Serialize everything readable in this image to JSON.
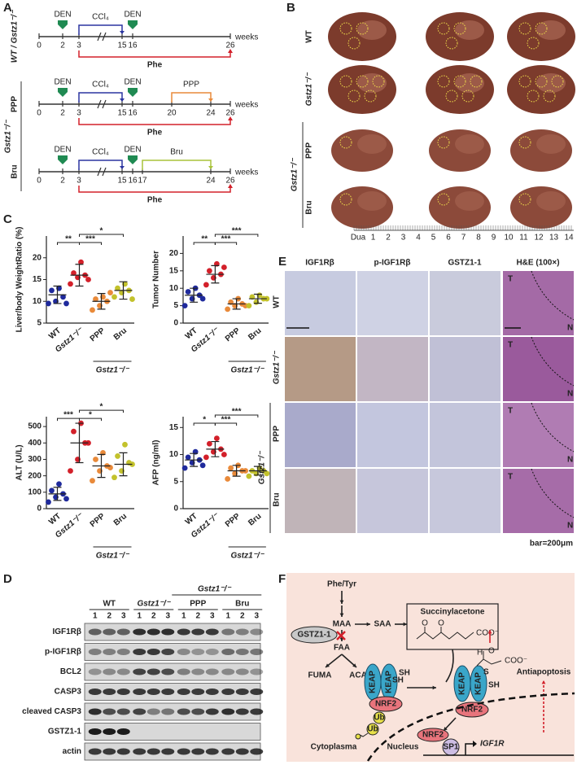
{
  "panel_a": {
    "label": "A",
    "den": "DEN",
    "ccl4": "CCl₄",
    "phe": "Phe",
    "weeks": "weeks",
    "group": "Gstz1⁻/⁻",
    "timelines": [
      {
        "label": "WT / Gstz1⁻/⁻",
        "ticks": [
          0,
          2,
          3,
          15,
          16,
          26
        ],
        "treatment": null
      },
      {
        "label": "PPP",
        "ticks": [
          0,
          2,
          3,
          15,
          16,
          20,
          24,
          26
        ],
        "treatment": {
          "name": "PPP",
          "from": 20,
          "to": 24
        }
      },
      {
        "label": "Bru",
        "ticks": [
          0,
          2,
          3,
          15,
          16,
          17,
          24,
          26
        ],
        "treatment": {
          "name": "Bru",
          "from": 17,
          "to": 24
        }
      }
    ]
  },
  "panel_b": {
    "label": "B",
    "rows": [
      "WT",
      "Gstz1⁻/⁻",
      "PPP",
      "Bru"
    ],
    "group": "Gstz1⁻/⁻",
    "ruler": [
      "Dua",
      "1",
      "2",
      "3",
      "4",
      "5",
      "6",
      "7",
      "8",
      "9",
      "10",
      "11",
      "12",
      "13",
      "14"
    ]
  },
  "panel_c": {
    "label": "C"
  },
  "chart_data": [
    {
      "type": "dotplot",
      "ylabel": "Liver/body WeightRatio (%)",
      "categories": [
        "WT",
        "Gstz1⁻/⁻",
        "PPP",
        "Bru"
      ],
      "colors": [
        "#1f2a9c",
        "#d3202a",
        "#e98a3a",
        "#c3c22c"
      ],
      "values": [
        [
          9.5,
          10,
          11,
          12.5,
          13,
          9.5
        ],
        [
          14,
          15.5,
          16,
          16.5,
          19,
          15
        ],
        [
          8,
          9,
          10,
          10.5,
          11,
          12
        ],
        [
          11,
          12,
          12.5,
          13,
          14,
          10.5
        ]
      ],
      "means": [
        11.5,
        16,
        10,
        12.5
      ],
      "sds": [
        2,
        2.5,
        1.8,
        2
      ],
      "ylim": [
        5,
        25
      ],
      "yticks": [
        5,
        10,
        15,
        20
      ],
      "group": {
        "label": "Gstz1⁻/⁻",
        "categories": [
          2,
          3
        ]
      },
      "comparisons": [
        {
          "from": 0,
          "to": 1,
          "label": "**"
        },
        {
          "from": 1,
          "to": 2,
          "label": "***"
        },
        {
          "from": 1,
          "to": 3,
          "label": "*"
        }
      ]
    },
    {
      "type": "dotplot",
      "ylabel": "Tumor Number",
      "categories": [
        "WT",
        "Gstz1⁻/⁻",
        "PPP",
        "Bru"
      ],
      "colors": [
        "#1f2a9c",
        "#d3202a",
        "#e98a3a",
        "#c3c22c"
      ],
      "values": [
        [
          5,
          7,
          8,
          9,
          10,
          7
        ],
        [
          11,
          13,
          14,
          15,
          17,
          16
        ],
        [
          4,
          5,
          5.5,
          6,
          7,
          5
        ],
        [
          5,
          6,
          7,
          7.5,
          8,
          7
        ]
      ],
      "means": [
        8,
        14,
        5.5,
        7
      ],
      "sds": [
        2,
        2.5,
        1.5,
        1.3
      ],
      "ylim": [
        0,
        25
      ],
      "yticks": [
        0,
        5,
        10,
        15,
        20
      ],
      "group": {
        "label": "Gstz1⁻/⁻",
        "categories": [
          2,
          3
        ]
      },
      "comparisons": [
        {
          "from": 0,
          "to": 1,
          "label": "**"
        },
        {
          "from": 1,
          "to": 2,
          "label": "***"
        },
        {
          "from": 1,
          "to": 3,
          "label": "***"
        }
      ]
    },
    {
      "type": "dotplot",
      "ylabel": "ALT (U/L)",
      "categories": [
        "WT",
        "Gstz1⁻/⁻",
        "PPP",
        "Bru"
      ],
      "colors": [
        "#1f2a9c",
        "#d3202a",
        "#e98a3a",
        "#c3c22c"
      ],
      "values": [
        [
          40,
          70,
          90,
          110,
          150,
          60
        ],
        [
          230,
          300,
          400,
          470,
          520,
          400
        ],
        [
          170,
          230,
          260,
          300,
          340,
          250
        ],
        [
          190,
          230,
          280,
          320,
          390,
          270
        ]
      ],
      "means": [
        90,
        400,
        260,
        270
      ],
      "sds": [
        40,
        120,
        70,
        70
      ],
      "ylim": [
        0,
        560
      ],
      "yticks": [
        0,
        100,
        200,
        300,
        400,
        500
      ],
      "group": {
        "label": "Gstz1⁻/⁻",
        "categories": [
          2,
          3
        ]
      },
      "comparisons": [
        {
          "from": 0,
          "to": 1,
          "label": "***"
        },
        {
          "from": 1,
          "to": 2,
          "label": "*"
        },
        {
          "from": 1,
          "to": 3,
          "label": "*"
        }
      ]
    },
    {
      "type": "dotplot",
      "ylabel": "AFP (ng/ml)",
      "categories": [
        "WT",
        "Gstz1⁻/⁻",
        "PPP",
        "Bru"
      ],
      "colors": [
        "#1f2a9c",
        "#d3202a",
        "#e98a3a",
        "#c3c22c"
      ],
      "values": [
        [
          7.5,
          8.5,
          9,
          9.5,
          10.5,
          8
        ],
        [
          9.5,
          10.5,
          11,
          12,
          13,
          10
        ],
        [
          5.5,
          6.5,
          7,
          7.5,
          8,
          7
        ],
        [
          6,
          6.5,
          7,
          7,
          7.5,
          6.5
        ]
      ],
      "means": [
        9,
        11,
        7,
        7
      ],
      "sds": [
        1.2,
        1.4,
        1,
        0.8
      ],
      "ylim": [
        0,
        17
      ],
      "yticks": [
        0,
        5,
        10,
        15
      ],
      "group": {
        "label": "Gstz1⁻/⁻",
        "categories": [
          2,
          3
        ]
      },
      "comparisons": [
        {
          "from": 0,
          "to": 1,
          "label": "*"
        },
        {
          "from": 1,
          "to": 2,
          "label": "***"
        },
        {
          "from": 1,
          "to": 3,
          "label": "***"
        }
      ]
    }
  ],
  "panel_d": {
    "label": "D",
    "top_group": "Gstz1⁻/⁻",
    "groups": [
      "WT",
      "Gstz1⁻/⁻",
      "PPP",
      "Bru"
    ],
    "lanes": [
      "1",
      "2",
      "3"
    ],
    "rows": [
      "IGF1Rβ",
      "p-IGF1Rβ",
      "BCL2",
      "CASP3",
      "cleaved CASP3",
      "GSTZ1-1",
      "actin"
    ]
  },
  "panel_e": {
    "label": "E",
    "columns": [
      "IGF1Rβ",
      "p-IGF1Rβ",
      "GSTZ1-1",
      "H&E (100×)"
    ],
    "rows": [
      "WT",
      "Gstz1⁻/⁻",
      "PPP",
      "Bru"
    ],
    "group": "Gstz1⁻/⁻",
    "tumor": "T",
    "normal": "N",
    "scale": "bar=200μm"
  },
  "panel_f": {
    "label": "F",
    "phe_tyr": "Phe/Tyr",
    "maa": "MAA",
    "saa": "SAA",
    "succinylacetone": "Succinylacetone",
    "gstz1": "GSTZ1-1",
    "faa": "FAA",
    "fuma": "FUMA",
    "aca": "ACA",
    "keap": "KEAP",
    "sh": "SH",
    "nrf2": "NRF2",
    "ub": "Ub",
    "antiapoptosis": "Antiapoptosis",
    "sp1": "SP1",
    "igf1r": "IGF1R",
    "cytoplasma": "Cytoplasma",
    "nucleus": "Nucleus",
    "o": "O",
    "h": "H",
    "s": "S",
    "coo": "COO⁻"
  }
}
